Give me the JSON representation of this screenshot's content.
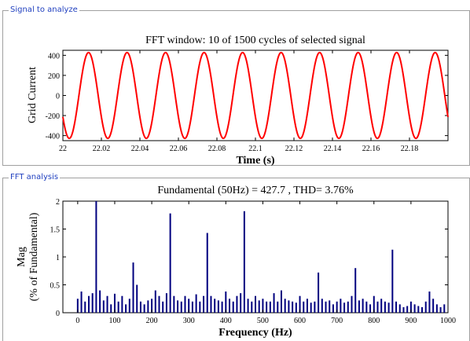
{
  "panels": {
    "signal": {
      "legend": "Signal to analyze",
      "plot_title": "FFT window: 10 of 1500 cycles of selected signal"
    },
    "fft": {
      "legend": "FFT analysis",
      "plot_title": "Fundamental (50Hz) = 427.7 , THD= 3.76%"
    }
  },
  "colors": {
    "panel_legend": "#1f3fbf",
    "signal_line": "#ff0000",
    "spectrum_bars": "#00007f",
    "axes": "#000000"
  },
  "chart_data": [
    {
      "type": "line",
      "title": "FFT window: 10 of 1500 cycles of selected signal",
      "xlabel": "Time (s)",
      "ylabel": "Grid Current",
      "xlim": [
        22.0,
        22.2
      ],
      "ylim": [
        -450,
        450
      ],
      "x_ticks": [
        22,
        22.02,
        22.04,
        22.06,
        22.08,
        22.1,
        22.12,
        22.14,
        22.16,
        22.18
      ],
      "y_ticks": [
        400,
        200,
        0,
        -200,
        -400
      ],
      "grid": false,
      "series": [
        {
          "amplitude": 427.7,
          "frequency_hz": 50,
          "phase_deg": 210,
          "cycles": 10
        }
      ]
    },
    {
      "type": "bar",
      "title": "Fundamental (50Hz) = 427.7 , THD= 3.76%",
      "xlabel": "Frequency (Hz)",
      "ylabel": "Mag\n(% of Fundamental)",
      "ylabel_lines": [
        "Mag",
        "(% of Fundamental)"
      ],
      "xlim": [
        -40,
        1000
      ],
      "ylim": [
        0,
        2
      ],
      "x_ticks": [
        0,
        100,
        200,
        300,
        400,
        500,
        600,
        700,
        800,
        900,
        1000
      ],
      "y_ticks": [
        0,
        0.5,
        1,
        1.5,
        2
      ],
      "grid": false,
      "x": [
        0,
        10,
        20,
        30,
        40,
        50,
        60,
        70,
        80,
        90,
        100,
        110,
        120,
        130,
        140,
        150,
        160,
        170,
        180,
        190,
        200,
        210,
        220,
        230,
        240,
        250,
        260,
        270,
        280,
        290,
        300,
        310,
        320,
        330,
        340,
        350,
        360,
        370,
        380,
        390,
        400,
        410,
        420,
        430,
        440,
        450,
        460,
        470,
        480,
        490,
        500,
        510,
        520,
        530,
        540,
        550,
        560,
        570,
        580,
        590,
        600,
        610,
        620,
        630,
        640,
        650,
        660,
        670,
        680,
        690,
        700,
        710,
        720,
        730,
        740,
        750,
        760,
        770,
        780,
        790,
        800,
        810,
        820,
        830,
        840,
        850,
        860,
        870,
        880,
        890,
        900,
        910,
        920,
        930,
        940,
        950,
        960,
        970,
        980,
        990,
        1000
      ],
      "values": [
        0.25,
        0.38,
        0.2,
        0.3,
        0.35,
        2.0,
        0.4,
        0.22,
        0.3,
        0.15,
        0.34,
        0.2,
        0.3,
        0.15,
        0.25,
        0.9,
        0.5,
        0.2,
        0.15,
        0.22,
        0.25,
        0.4,
        0.3,
        0.2,
        0.35,
        1.78,
        0.3,
        0.22,
        0.2,
        0.3,
        0.25,
        0.2,
        0.33,
        0.2,
        0.3,
        1.43,
        0.3,
        0.25,
        0.22,
        0.2,
        0.38,
        0.25,
        0.2,
        0.3,
        0.35,
        1.82,
        0.25,
        0.2,
        0.3,
        0.22,
        0.25,
        0.2,
        0.2,
        0.35,
        0.2,
        0.4,
        0.25,
        0.22,
        0.2,
        0.18,
        0.3,
        0.2,
        0.25,
        0.18,
        0.2,
        0.72,
        0.25,
        0.2,
        0.22,
        0.15,
        0.2,
        0.25,
        0.18,
        0.2,
        0.3,
        0.8,
        0.22,
        0.25,
        0.2,
        0.15,
        0.3,
        0.2,
        0.25,
        0.2,
        0.18,
        1.13,
        0.2,
        0.15,
        0.1,
        0.12,
        0.2,
        0.15,
        0.12,
        0.1,
        0.2,
        0.38,
        0.25,
        0.15,
        0.1,
        0.15,
        0.0
      ]
    }
  ]
}
